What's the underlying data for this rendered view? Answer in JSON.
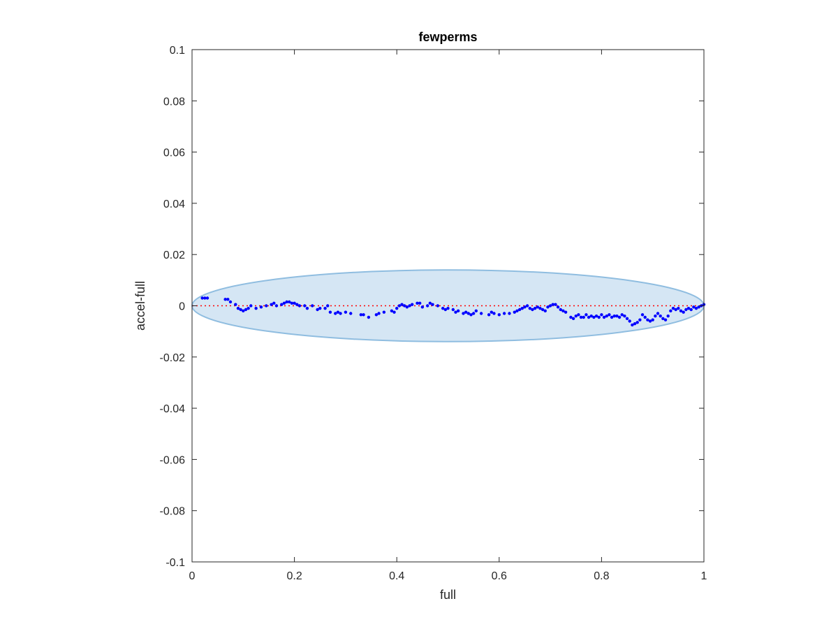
{
  "chart_data": {
    "type": "scatter",
    "title": "fewperms",
    "xlabel": "full",
    "ylabel": "accel-full",
    "xlim": [
      0,
      1
    ],
    "ylim": [
      -0.1,
      0.1
    ],
    "x_ticks": [
      0,
      0.2,
      0.4,
      0.6,
      0.8,
      1
    ],
    "x_tick_labels": [
      "0",
      "0.2",
      "0.4",
      "0.6",
      "0.8",
      "1"
    ],
    "y_ticks": [
      -0.1,
      -0.08,
      -0.06,
      -0.04,
      -0.02,
      0,
      0.02,
      0.04,
      0.06,
      0.08,
      0.1
    ],
    "y_tick_labels": [
      "-0.1",
      "-0.08",
      "-0.06",
      "-0.04",
      "-0.02",
      "0",
      "0.02",
      "0.04",
      "0.06",
      "0.08",
      "0.1"
    ],
    "grid": false,
    "reference_line": {
      "y": 0,
      "color": "#ff0000",
      "style": "dotted"
    },
    "ellipse": {
      "center": [
        0.5,
        0
      ],
      "x_semi_axis": 0.5,
      "y_semi_axis": 0.014,
      "fill": "#d5e6f4",
      "stroke": "#8fbde0"
    },
    "marker_color": "#0000ff",
    "points": {
      "x": [
        0.02,
        0.025,
        0.03,
        0.065,
        0.07,
        0.075,
        0.085,
        0.09,
        0.095,
        0.1,
        0.105,
        0.11,
        0.115,
        0.125,
        0.135,
        0.145,
        0.155,
        0.16,
        0.165,
        0.175,
        0.18,
        0.185,
        0.19,
        0.195,
        0.2,
        0.205,
        0.21,
        0.22,
        0.225,
        0.235,
        0.245,
        0.25,
        0.26,
        0.265,
        0.27,
        0.28,
        0.285,
        0.29,
        0.3,
        0.31,
        0.33,
        0.335,
        0.345,
        0.36,
        0.365,
        0.375,
        0.39,
        0.395,
        0.4,
        0.405,
        0.41,
        0.415,
        0.42,
        0.425,
        0.43,
        0.44,
        0.445,
        0.45,
        0.46,
        0.465,
        0.47,
        0.48,
        0.49,
        0.495,
        0.5,
        0.51,
        0.515,
        0.52,
        0.53,
        0.535,
        0.54,
        0.545,
        0.55,
        0.555,
        0.565,
        0.58,
        0.585,
        0.59,
        0.6,
        0.61,
        0.62,
        0.63,
        0.635,
        0.64,
        0.645,
        0.65,
        0.655,
        0.66,
        0.665,
        0.67,
        0.675,
        0.68,
        0.685,
        0.69,
        0.695,
        0.7,
        0.705,
        0.71,
        0.715,
        0.72,
        0.725,
        0.73,
        0.74,
        0.745,
        0.75,
        0.755,
        0.76,
        0.765,
        0.77,
        0.775,
        0.78,
        0.785,
        0.79,
        0.795,
        0.8,
        0.805,
        0.81,
        0.815,
        0.82,
        0.825,
        0.83,
        0.835,
        0.84,
        0.845,
        0.85,
        0.855,
        0.86,
        0.865,
        0.87,
        0.875,
        0.88,
        0.885,
        0.89,
        0.895,
        0.9,
        0.905,
        0.91,
        0.915,
        0.92,
        0.925,
        0.93,
        0.935,
        0.94,
        0.945,
        0.95,
        0.955,
        0.96,
        0.965,
        0.97,
        0.975,
        0.98,
        0.985,
        0.99,
        0.995,
        1.0
      ],
      "y": [
        0.003,
        0.003,
        0.003,
        0.0025,
        0.0025,
        0.0015,
        0.0005,
        -0.001,
        -0.0015,
        -0.002,
        -0.0015,
        -0.001,
        0.0,
        -0.001,
        -0.0005,
        0.0,
        0.0005,
        0.001,
        0.0,
        0.0005,
        0.001,
        0.0015,
        0.0015,
        0.001,
        0.001,
        0.0005,
        0.0,
        0.0,
        -0.001,
        0.0,
        -0.0015,
        -0.001,
        -0.001,
        0.0,
        -0.0025,
        -0.003,
        -0.0025,
        -0.003,
        -0.0025,
        -0.003,
        -0.0035,
        -0.0035,
        -0.0045,
        -0.0035,
        -0.003,
        -0.0025,
        -0.002,
        -0.0025,
        -0.001,
        0.0,
        0.0005,
        0.0,
        -0.0005,
        0.0,
        0.0005,
        0.001,
        0.001,
        -0.0005,
        0.0,
        0.001,
        0.0005,
        0.0,
        -0.001,
        -0.0015,
        -0.001,
        -0.0015,
        -0.0025,
        -0.002,
        -0.003,
        -0.0025,
        -0.003,
        -0.0035,
        -0.003,
        -0.002,
        -0.003,
        -0.0035,
        -0.0025,
        -0.003,
        -0.0035,
        -0.003,
        -0.003,
        -0.0025,
        -0.002,
        -0.0015,
        -0.001,
        -0.0005,
        0.0,
        -0.001,
        -0.0015,
        -0.001,
        -0.0005,
        -0.001,
        -0.0015,
        -0.002,
        -0.0005,
        0.0,
        0.0005,
        0.0005,
        -0.0005,
        -0.0015,
        -0.002,
        -0.0025,
        -0.0045,
        -0.005,
        -0.004,
        -0.0035,
        -0.0045,
        -0.0045,
        -0.0035,
        -0.0045,
        -0.004,
        -0.0045,
        -0.004,
        -0.0045,
        -0.0035,
        -0.0045,
        -0.004,
        -0.0035,
        -0.0045,
        -0.004,
        -0.004,
        -0.0045,
        -0.0035,
        -0.004,
        -0.005,
        -0.006,
        -0.0075,
        -0.007,
        -0.0065,
        -0.0055,
        -0.0035,
        -0.0045,
        -0.0055,
        -0.006,
        -0.0055,
        -0.004,
        -0.003,
        -0.004,
        -0.005,
        -0.0055,
        -0.004,
        -0.002,
        -0.001,
        -0.0015,
        -0.001,
        -0.002,
        -0.0025,
        -0.0015,
        -0.001,
        -0.0015,
        -0.0005,
        -0.001,
        -0.0005,
        0.0,
        0.0005
      ]
    }
  }
}
